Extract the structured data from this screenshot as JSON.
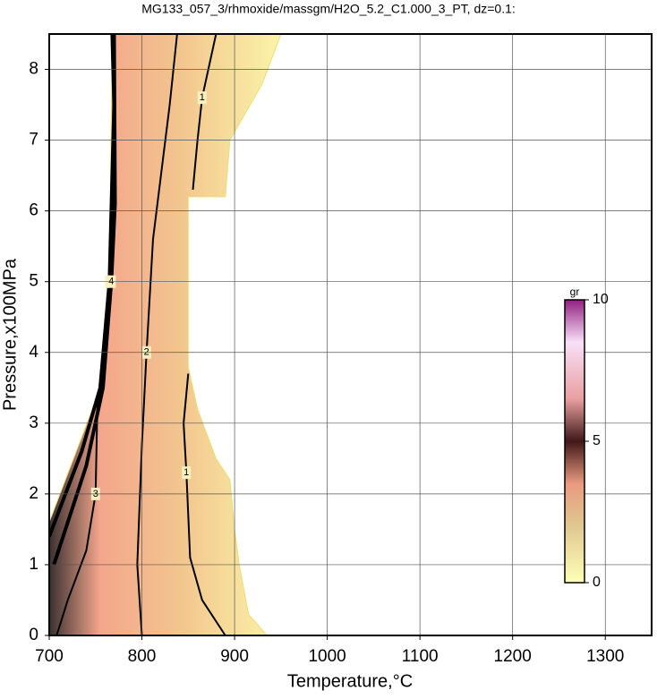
{
  "chart_data": {
    "type": "contour",
    "title": "MG133_057_3/rhmoxide/massgm/H2O_5.2_C1.000_3_PT, dz=0.1:",
    "x_label": "Temperature,°C",
    "y_label": "Pressure,x100MPa",
    "xlim": [
      700,
      1350
    ],
    "xticks": [
      700,
      800,
      900,
      1000,
      1100,
      1200,
      1300
    ],
    "ylim": [
      0,
      8.5
    ],
    "yticks": [
      0,
      1,
      2,
      3,
      4,
      5,
      6,
      7,
      8
    ],
    "grid": true,
    "region": {
      "x": [
        700,
        935,
        915,
        905,
        900,
        895,
        880,
        860,
        850,
        850,
        890,
        895,
        930,
        950,
        768,
        765,
        755,
        735,
        700
      ],
      "y": [
        0,
        0,
        0.3,
        1,
        1.5,
        2.2,
        2.5,
        3.2,
        3.8,
        6.2,
        6.2,
        7,
        7.8,
        8.5,
        8.5,
        5,
        3.5,
        2.8,
        1.6
      ]
    },
    "contours": [
      {
        "level": 5,
        "x": [
          700,
          735,
          755,
          765,
          770,
          768
        ],
        "y": [
          1.4,
          2.6,
          3.5,
          5,
          7.5,
          8.5
        ]
      },
      {
        "level": 4,
        "x": [
          705,
          740,
          758,
          767,
          771,
          770
        ],
        "y": [
          1.0,
          2.4,
          3.5,
          5,
          6.1,
          8.5
        ]
      },
      {
        "level": 3,
        "x": [
          708,
          720,
          740,
          750,
          752,
          758
        ],
        "y": [
          0,
          0.5,
          1.2,
          2,
          3.3,
          3.8
        ]
      },
      {
        "level": 2,
        "x": [
          800,
          795,
          800,
          805,
          812,
          830,
          838
        ],
        "y": [
          0,
          1,
          2.7,
          4,
          5.6,
          7.5,
          8.5
        ]
      },
      {
        "level": 1,
        "x": [
          890,
          865,
          852,
          848,
          845,
          850
        ],
        "y": [
          0,
          0.5,
          1.1,
          2.3,
          3.0,
          3.7
        ]
      },
      {
        "level": 1,
        "x": [
          855,
          860,
          865,
          880
        ],
        "y": [
          6.3,
          7,
          7.6,
          8.5
        ]
      }
    ],
    "colorbar": {
      "label": "gr",
      "clim": [
        0,
        10
      ],
      "ticks": [
        0,
        5,
        10
      ]
    }
  }
}
